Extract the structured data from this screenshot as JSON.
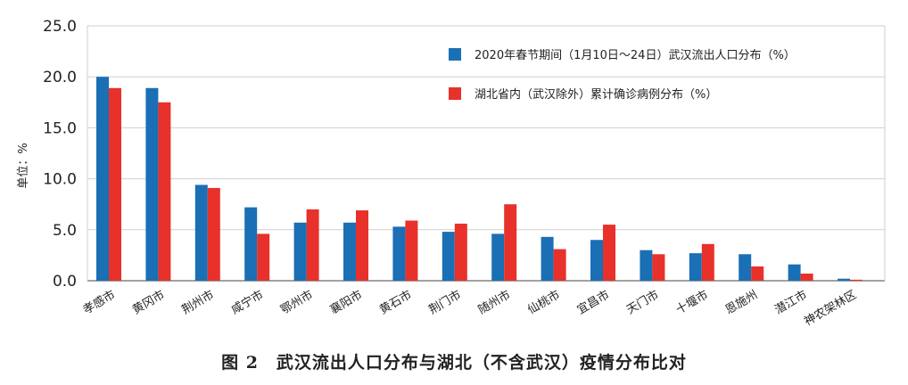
{
  "caption": "图 2　武汉流出人口分布与湖北（不含武汉）疫情分布比对",
  "colors": {
    "series1": "#1a6fb5",
    "series2": "#e8312a",
    "grid": "#cfcfcf",
    "axis": "#444444"
  },
  "chart_data": {
    "type": "bar",
    "title": "",
    "xlabel": "",
    "ylabel": "单位：%",
    "ylim": [
      0,
      25
    ],
    "yticks": [
      "0.0",
      "5.0",
      "10.0",
      "15.0",
      "20.0",
      "25.0"
    ],
    "grid": true,
    "legend_position": "top-right",
    "categories": [
      "孝感市",
      "黄冈市",
      "荆州市",
      "咸宁市",
      "鄂州市",
      "襄阳市",
      "黄石市",
      "荆门市",
      "随州市",
      "仙桃市",
      "宜昌市",
      "天门市",
      "十堰市",
      "恩施州",
      "潜江市",
      "神农架林区"
    ],
    "series": [
      {
        "name": "2020年春节期间（1月10日～24日）武汉流出人口分布（%）",
        "values": [
          20.0,
          18.9,
          9.4,
          7.2,
          5.7,
          5.7,
          5.3,
          4.8,
          4.6,
          4.3,
          4.0,
          3.0,
          2.7,
          2.6,
          1.6,
          0.2
        ]
      },
      {
        "name": "湖北省内（武汉除外）累计确诊病例分布（%）",
        "values": [
          18.9,
          17.5,
          9.1,
          4.6,
          7.0,
          6.9,
          5.9,
          5.6,
          7.5,
          3.1,
          5.5,
          2.6,
          3.6,
          1.4,
          0.7,
          0.1
        ]
      }
    ]
  }
}
